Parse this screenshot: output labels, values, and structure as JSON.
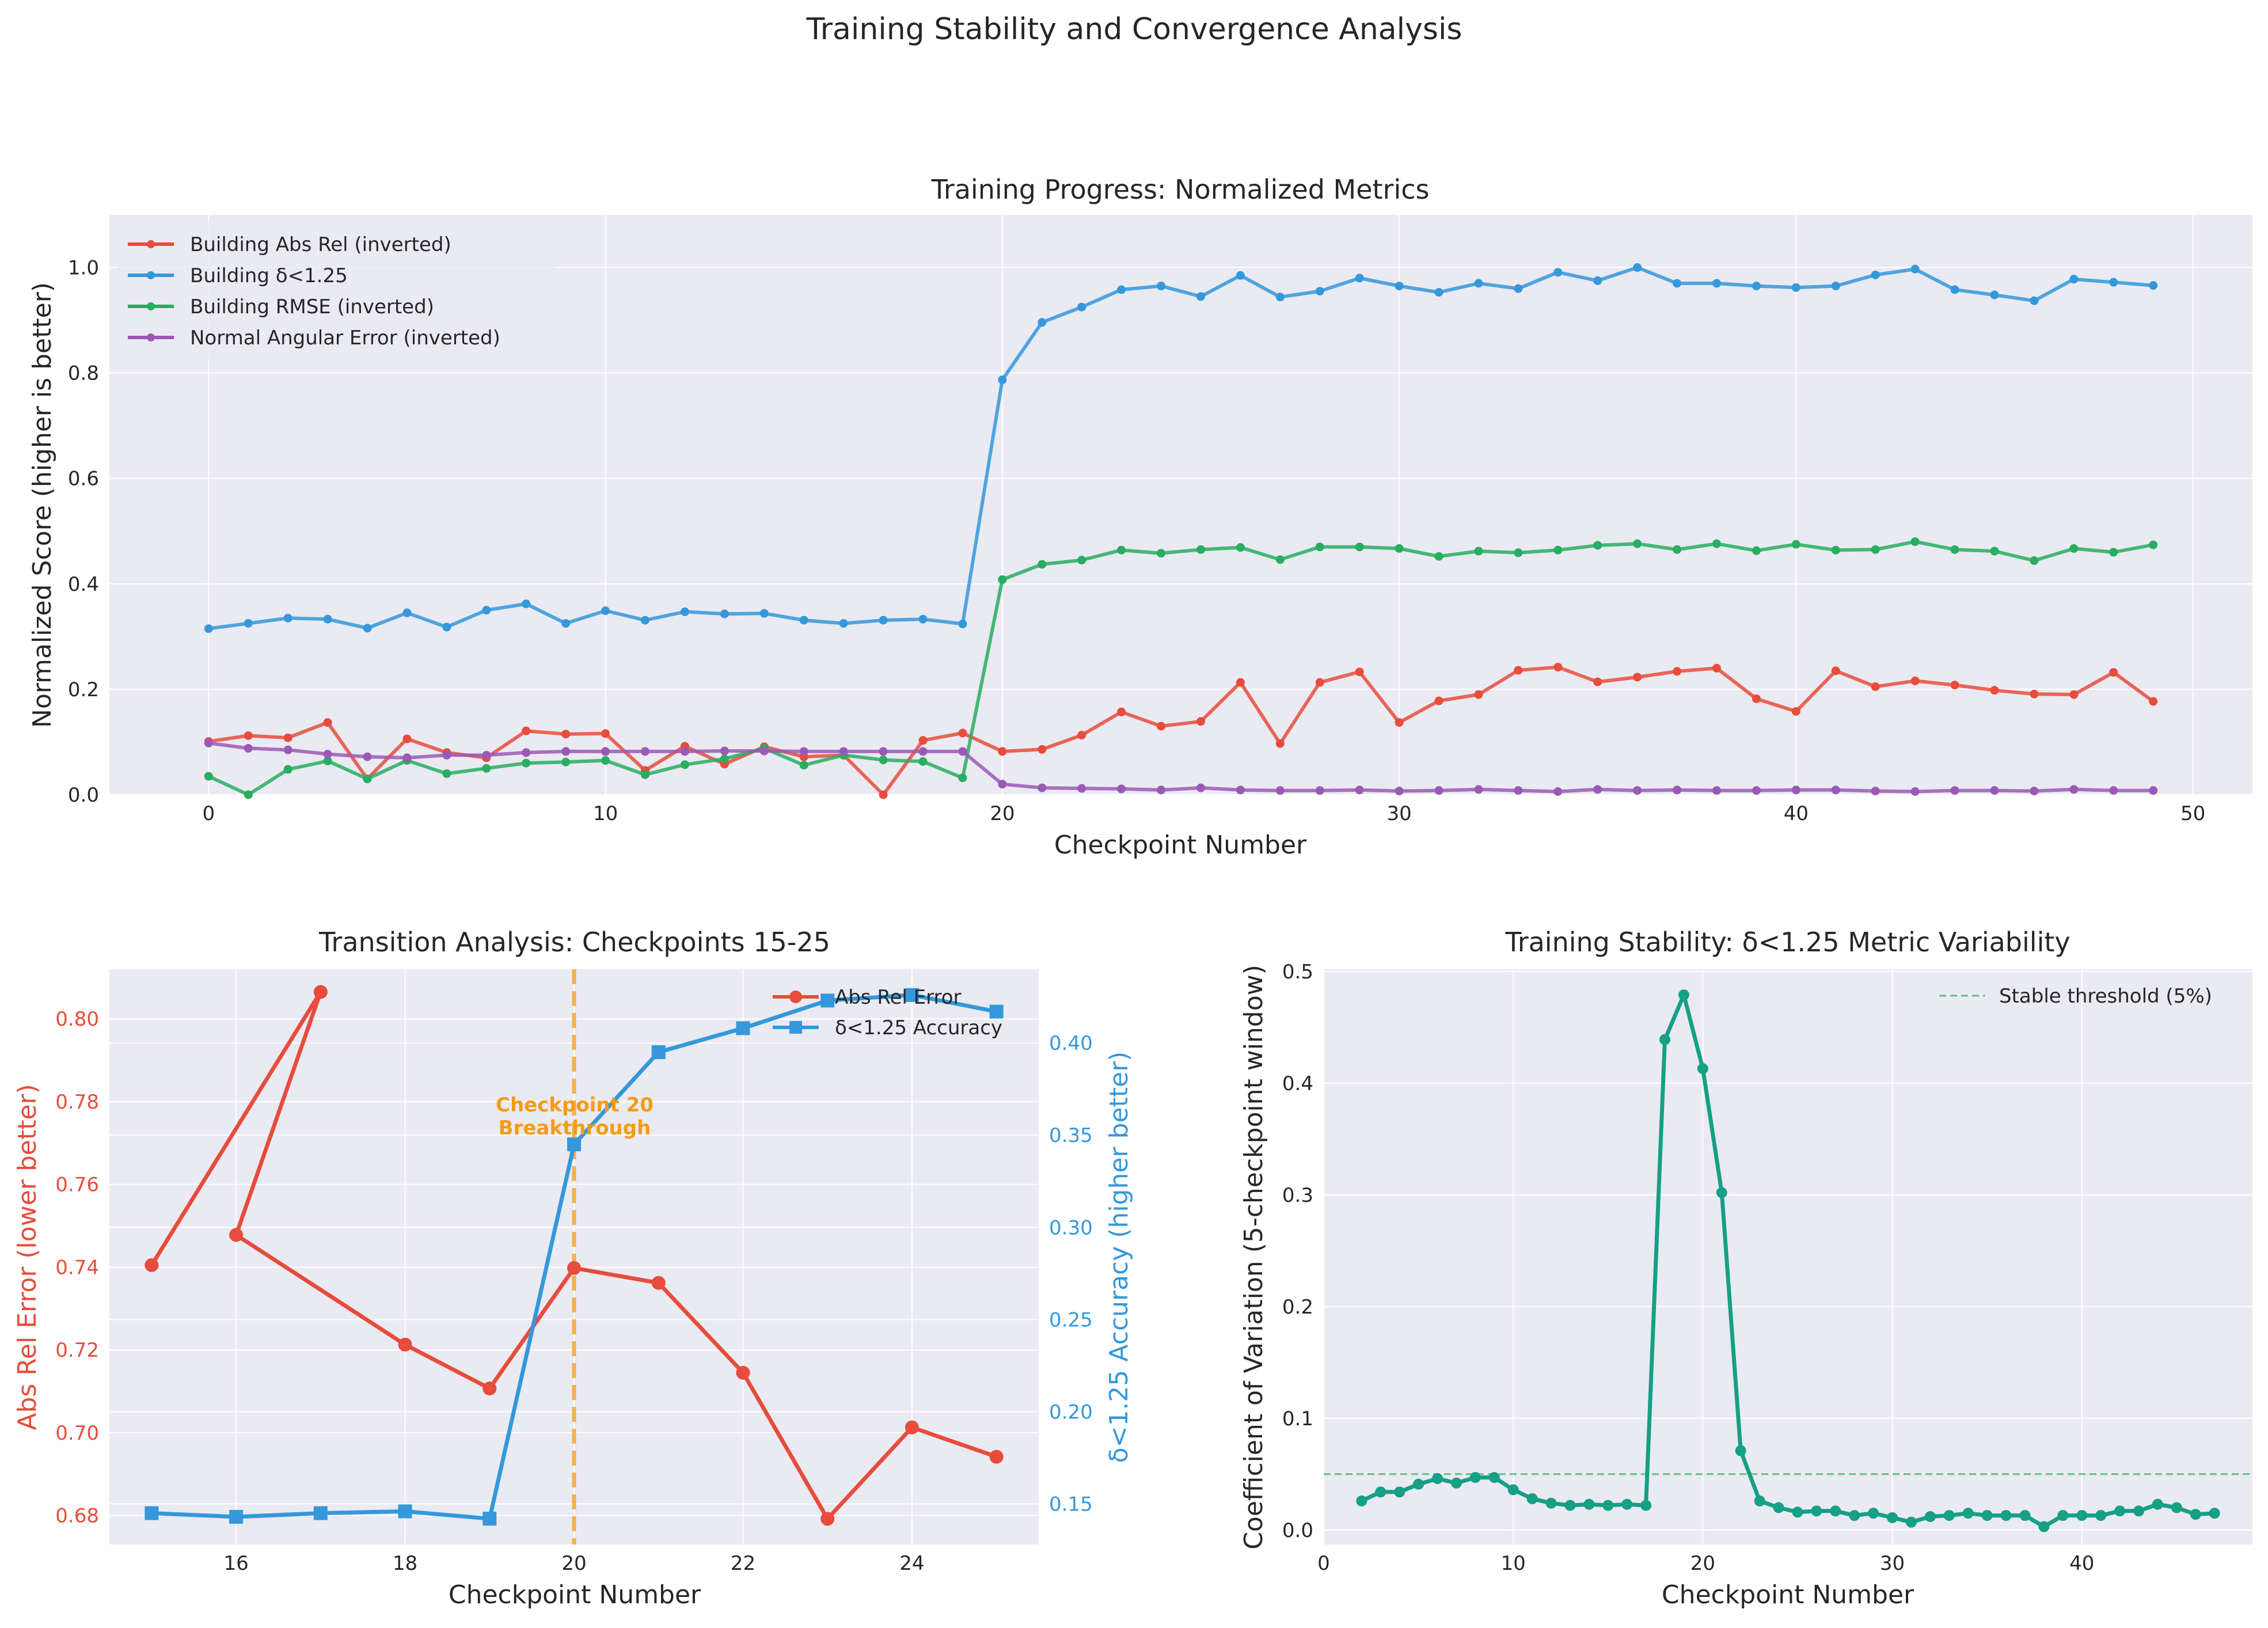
{
  "figure": {
    "title": "Training Stability and Convergence Analysis"
  },
  "colors": {
    "abs_rel": "#e74c3c",
    "delta": "#3498db",
    "rmse": "#27ae60",
    "normal": "#9b59b6",
    "cv": "#16a085",
    "checkpoint": "#f39c12",
    "panel_bg": "#eaeaf2"
  },
  "chart_data": [
    {
      "type": "line",
      "title": "Training Progress: Normalized Metrics",
      "xlabel": "Checkpoint Number",
      "ylabel": "Normalized Score (higher is better)",
      "xlim": [
        -2.5,
        51.5
      ],
      "ylim": [
        0,
        1.1
      ],
      "xticks": [
        0,
        10,
        20,
        30,
        40,
        50
      ],
      "yticks": [
        0.0,
        0.2,
        0.4,
        0.6,
        0.8,
        1.0
      ],
      "grid": true,
      "legend": "top-left",
      "series": [
        {
          "name": "Building Abs Rel (inverted)",
          "color": "#e74c3c",
          "x": [
            0,
            1,
            2,
            3,
            4,
            5,
            6,
            7,
            8,
            9,
            10,
            11,
            12,
            13,
            14,
            15,
            16,
            17,
            18,
            19,
            20,
            21,
            22,
            23,
            24,
            25,
            26,
            27,
            28,
            29,
            30,
            31,
            32,
            33,
            34,
            35,
            36,
            37,
            38,
            39,
            40,
            41,
            42,
            43,
            44,
            45,
            46,
            47,
            48,
            49
          ],
          "y": [
            0.101,
            0.112,
            0.108,
            0.137,
            0.03,
            0.106,
            0.08,
            0.07,
            0.121,
            0.115,
            0.116,
            0.046,
            0.092,
            0.058,
            0.091,
            0.072,
            0.075,
            0.0,
            0.103,
            0.117,
            0.082,
            0.086,
            0.113,
            0.157,
            0.13,
            0.139,
            0.213,
            0.097,
            0.213,
            0.233,
            0.137,
            0.178,
            0.19,
            0.236,
            0.242,
            0.214,
            0.223,
            0.234,
            0.24,
            0.182,
            0.158,
            0.235,
            0.205,
            0.216,
            0.208,
            0.198,
            0.191,
            0.19,
            0.232,
            0.177
          ]
        },
        {
          "name": "Building δ<1.25",
          "color": "#3498db",
          "x": [
            0,
            1,
            2,
            3,
            4,
            5,
            6,
            7,
            8,
            9,
            10,
            11,
            12,
            13,
            14,
            15,
            16,
            17,
            18,
            19,
            20,
            21,
            22,
            23,
            24,
            25,
            26,
            27,
            28,
            29,
            30,
            31,
            32,
            33,
            34,
            35,
            36,
            37,
            38,
            39,
            40,
            41,
            42,
            43,
            44,
            45,
            46,
            47,
            48,
            49
          ],
          "y": [
            0.315,
            0.325,
            0.335,
            0.333,
            0.316,
            0.345,
            0.318,
            0.35,
            0.362,
            0.325,
            0.349,
            0.331,
            0.347,
            0.343,
            0.344,
            0.331,
            0.325,
            0.331,
            0.333,
            0.324,
            0.787,
            0.896,
            0.925,
            0.958,
            0.965,
            0.945,
            0.985,
            0.944,
            0.955,
            0.98,
            0.965,
            0.953,
            0.97,
            0.96,
            0.991,
            0.975,
            1.0,
            0.97,
            0.97,
            0.965,
            0.962,
            0.965,
            0.986,
            0.997,
            0.958,
            0.948,
            0.937,
            0.978,
            0.972,
            0.966
          ]
        },
        {
          "name": "Building RMSE (inverted)",
          "color": "#27ae60",
          "x": [
            0,
            1,
            2,
            3,
            4,
            5,
            6,
            7,
            8,
            9,
            10,
            11,
            12,
            13,
            14,
            15,
            16,
            17,
            18,
            19,
            20,
            21,
            22,
            23,
            24,
            25,
            26,
            27,
            28,
            29,
            30,
            31,
            32,
            33,
            34,
            35,
            36,
            37,
            38,
            39,
            40,
            41,
            42,
            43,
            44,
            45,
            46,
            47,
            48,
            49
          ],
          "y": [
            0.035,
            0.0,
            0.048,
            0.064,
            0.03,
            0.065,
            0.04,
            0.05,
            0.06,
            0.062,
            0.065,
            0.038,
            0.057,
            0.068,
            0.088,
            0.056,
            0.075,
            0.066,
            0.063,
            0.032,
            0.408,
            0.437,
            0.445,
            0.464,
            0.458,
            0.465,
            0.469,
            0.446,
            0.47,
            0.47,
            0.467,
            0.452,
            0.462,
            0.459,
            0.464,
            0.473,
            0.476,
            0.465,
            0.476,
            0.463,
            0.475,
            0.464,
            0.465,
            0.48,
            0.465,
            0.462,
            0.444,
            0.467,
            0.46,
            0.474
          ]
        },
        {
          "name": "Normal Angular Error (inverted)",
          "color": "#9b59b6",
          "x": [
            0,
            1,
            2,
            3,
            4,
            5,
            6,
            7,
            8,
            9,
            10,
            11,
            12,
            13,
            14,
            15,
            16,
            17,
            18,
            19,
            20,
            21,
            22,
            23,
            24,
            25,
            26,
            27,
            28,
            29,
            30,
            31,
            32,
            33,
            34,
            35,
            36,
            37,
            38,
            39,
            40,
            41,
            42,
            43,
            44,
            45,
            46,
            47,
            48,
            49
          ],
          "y": [
            0.098,
            0.088,
            0.085,
            0.077,
            0.072,
            0.07,
            0.075,
            0.075,
            0.08,
            0.082,
            0.082,
            0.082,
            0.082,
            0.083,
            0.083,
            0.082,
            0.082,
            0.082,
            0.082,
            0.082,
            0.02,
            0.013,
            0.012,
            0.011,
            0.009,
            0.013,
            0.009,
            0.008,
            0.008,
            0.009,
            0.007,
            0.008,
            0.01,
            0.008,
            0.006,
            0.01,
            0.008,
            0.009,
            0.008,
            0.008,
            0.009,
            0.009,
            0.007,
            0.006,
            0.008,
            0.008,
            0.007,
            0.01,
            0.008,
            0.008
          ]
        }
      ]
    },
    {
      "type": "line",
      "title": "Transition Analysis: Checkpoints 15-25",
      "xlabel": "Checkpoint Number",
      "ylabel": "Abs Rel Error (lower better)",
      "ylabel_right": "δ<1.25 Accuracy (higher better)",
      "xlim": [
        14.5,
        25.5
      ],
      "ylim": [
        0.673,
        0.812
      ],
      "ylim_right": [
        0.128,
        0.44
      ],
      "xticks": [
        16,
        18,
        20,
        22,
        24
      ],
      "yticks": [
        0.68,
        0.7,
        0.72,
        0.74,
        0.76,
        0.78,
        0.8
      ],
      "yticks_right": [
        0.15,
        0.2,
        0.25,
        0.3,
        0.35,
        0.4
      ],
      "grid": true,
      "legend": "top-right",
      "annotation": {
        "text": "Checkpoint 20\nBreakthrough",
        "x": 20,
        "y": 0.775
      },
      "vline": {
        "x": 20
      },
      "series": [
        {
          "name": "Abs Rel Error",
          "color": "#e74c3c",
          "axis": "left",
          "x": [
            15,
            17,
            16,
            18,
            19,
            20,
            21,
            22,
            23,
            24,
            25
          ],
          "y": [
            0.7405,
            0.8065,
            0.7478,
            0.7213,
            0.7107,
            0.7398,
            0.7362,
            0.7145,
            0.6792,
            0.7013,
            0.6942
          ]
        },
        {
          "name": "δ<1.25 Accuracy",
          "color": "#3498db",
          "axis": "right",
          "x": [
            15,
            16,
            17,
            18,
            19,
            20,
            21,
            22,
            23,
            24,
            25
          ],
          "y": [
            0.145,
            0.143,
            0.145,
            0.146,
            0.142,
            0.345,
            0.395,
            0.408,
            0.423,
            0.426,
            0.417
          ]
        }
      ]
    },
    {
      "type": "line",
      "title": "Training Stability: δ<1.25 Metric Variability",
      "xlabel": "Checkpoint Number",
      "ylabel": "Coefficient of Variation (5-checkpoint window)",
      "xlim": [
        0,
        49
      ],
      "ylim": [
        -0.013,
        0.502
      ],
      "xticks": [
        0,
        10,
        20,
        30,
        40
      ],
      "yticks": [
        0.0,
        0.1,
        0.2,
        0.3,
        0.4,
        0.5
      ],
      "grid": true,
      "legend": "top-right",
      "threshold": {
        "name": "Stable threshold (5%)",
        "y": 0.05
      },
      "series": [
        {
          "name": "",
          "color": "#16a085",
          "x": [
            2,
            3,
            4,
            5,
            6,
            7,
            8,
            9,
            10,
            11,
            12,
            13,
            14,
            15,
            16,
            17,
            18,
            19,
            20,
            21,
            22,
            23,
            24,
            25,
            26,
            27,
            28,
            29,
            30,
            31,
            32,
            33,
            34,
            35,
            36,
            37,
            38,
            39,
            40,
            41,
            42,
            43,
            44,
            45,
            46,
            47
          ],
          "y": [
            0.026,
            0.034,
            0.034,
            0.041,
            0.046,
            0.042,
            0.047,
            0.047,
            0.036,
            0.028,
            0.024,
            0.022,
            0.023,
            0.022,
            0.023,
            0.022,
            0.439,
            0.479,
            0.413,
            0.302,
            0.071,
            0.026,
            0.02,
            0.016,
            0.017,
            0.017,
            0.013,
            0.015,
            0.011,
            0.007,
            0.012,
            0.013,
            0.015,
            0.013,
            0.013,
            0.013,
            0.003,
            0.013,
            0.013,
            0.013,
            0.017,
            0.017,
            0.023,
            0.02,
            0.014,
            0.015
          ]
        }
      ]
    }
  ]
}
